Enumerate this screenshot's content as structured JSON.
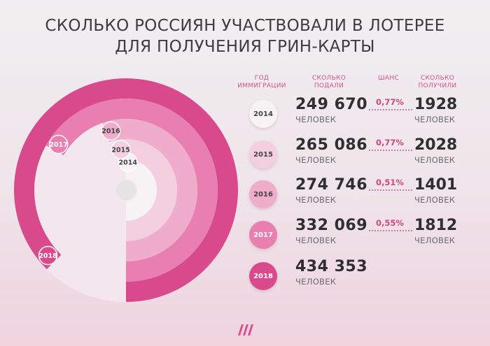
{
  "chart_data": {
    "type": "table",
    "title_lines": [
      "СКОЛЬКО РОССИЯН УЧАСТВОВАЛИ В ЛОТЕРЕЕ",
      "ДЛЯ ПОЛУЧЕНИЯ ГРИН-КАРТЫ"
    ],
    "headers": {
      "year": [
        "ГОД",
        "ИММИГРАЦИИ"
      ],
      "applied": [
        "СКОЛЬКО",
        "ПОДАЛИ"
      ],
      "chance": [
        "ШАНС"
      ],
      "received": [
        "СКОЛЬКО",
        "ПОЛУЧИЛИ"
      ]
    },
    "unit": "ЧЕЛОВЕК",
    "rows": [
      {
        "year": "2014",
        "applied_text": "249 670",
        "applied": 249670,
        "chance": "0,77%",
        "received_text": "1928",
        "received": 1928
      },
      {
        "year": "2015",
        "applied_text": "265 086",
        "applied": 265086,
        "chance": "0,77%",
        "received_text": "2028",
        "received": 2028
      },
      {
        "year": "2016",
        "applied_text": "274 746",
        "applied": 274746,
        "chance": "0,51%",
        "received_text": "1401",
        "received": 1401
      },
      {
        "year": "2017",
        "applied_text": "332 069",
        "applied": 332069,
        "chance": "0,55%",
        "received_text": "1812",
        "received": 1812
      },
      {
        "year": "2018",
        "applied_text": "434 353",
        "applied": 434353
      }
    ],
    "colors": [
      "#f7f3f5",
      "#f4cfdf",
      "#efaccb",
      "#e87fb0",
      "#d94a8c"
    ],
    "year_text_colors": [
      "#444444",
      "#444444",
      "#444444",
      "#ffffff",
      "#ffffff"
    ],
    "accent": "#d5508e"
  },
  "logo": {
    "icon": "stripes-logo-icon"
  }
}
